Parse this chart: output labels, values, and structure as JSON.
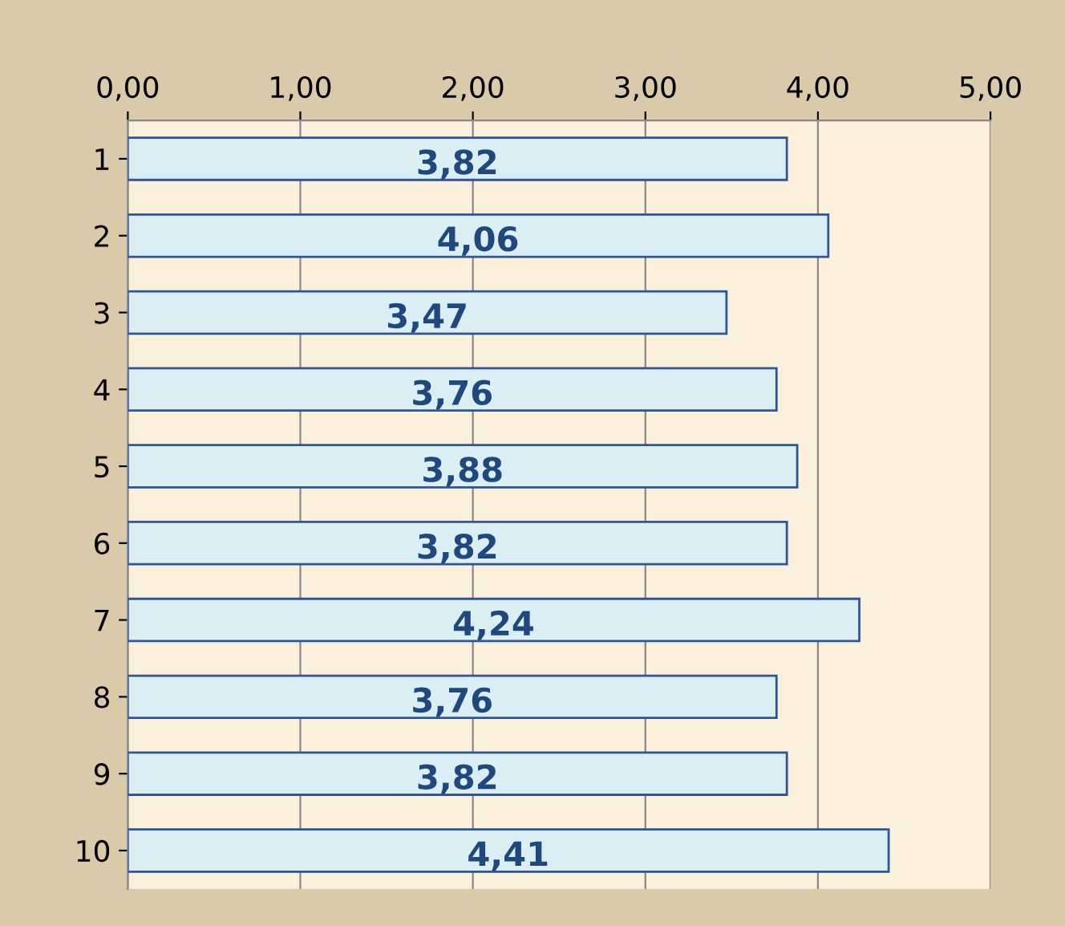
{
  "chart_data": {
    "type": "bar",
    "orientation": "horizontal",
    "categories": [
      "1",
      "2",
      "3",
      "4",
      "5",
      "6",
      "7",
      "8",
      "9",
      "10"
    ],
    "values": [
      3.82,
      4.06,
      3.47,
      3.76,
      3.88,
      3.82,
      4.24,
      3.76,
      3.82,
      4.41
    ],
    "value_labels": [
      "3,82",
      "4,06",
      "3,47",
      "3,76",
      "3,88",
      "3,82",
      "4,24",
      "3,76",
      "3,82",
      "4,41"
    ],
    "color": "#dbeef4",
    "xlim": [
      0,
      5
    ],
    "xticks": [
      {
        "value": 0,
        "label": "0,00"
      },
      {
        "value": 1,
        "label": "1,00"
      },
      {
        "value": 2,
        "label": "2,00"
      },
      {
        "value": 3,
        "label": "3,00"
      },
      {
        "value": 4,
        "label": "4,00"
      },
      {
        "value": 5,
        "label": "5,00"
      }
    ],
    "grid": "x",
    "legend": false
  }
}
